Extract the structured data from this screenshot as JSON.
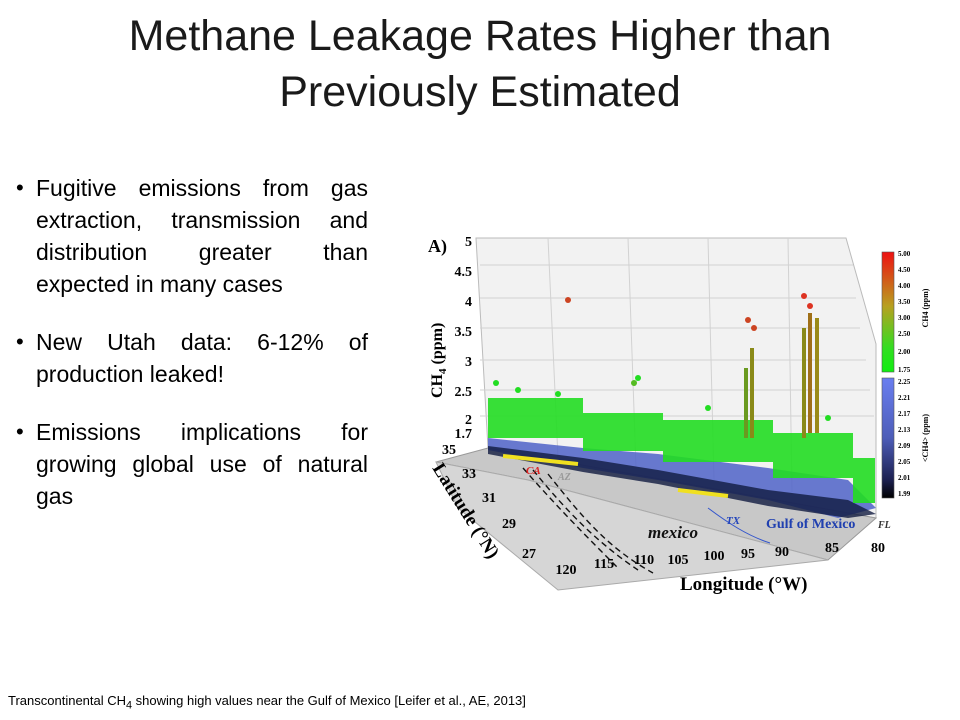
{
  "slide": {
    "title_line1": "Methane Leakage Rates Higher than",
    "title_line2": "Previously Estimated",
    "bullets": [
      "Fugitive emissions from gas extraction, transmission and distribution greater than expected in many cases",
      "New Utah data: 6-12% of production leaked!",
      "Emissions implications for growing global use of natural gas"
    ],
    "caption_pre": "Transcontinental CH",
    "caption_sub": "4",
    "caption_post": " showing high values near the Gulf of Mexico [Leifer et al., AE, 2013]"
  },
  "figure": {
    "panel_label": "A)",
    "z_label": "CH",
    "z_label_sub": "4",
    "z_label_post": " (ppm)",
    "z_ticks": [
      "5",
      "4.5",
      "4",
      "3.5",
      "3",
      "2.5",
      "2",
      "1.7"
    ],
    "lat_label": "Latitude (°N)",
    "lat_ticks": [
      "35",
      "33",
      "31",
      "29",
      "27"
    ],
    "lon_label": "Longitude (°W)",
    "lon_ticks": [
      "120",
      "115",
      "110",
      "105",
      "100",
      "95",
      "90",
      "85",
      "80"
    ],
    "map_labels": {
      "ca": "CA",
      "az": "AZ",
      "tx": "TX",
      "mexico": "mexico",
      "gulf": "Gulf of Mexico",
      "fl": "FL"
    },
    "colorbar_top": {
      "title": "CH4 (ppm)",
      "ticks": [
        "5.00",
        "4.50",
        "4.00",
        "3.50",
        "3.00",
        "2.50",
        "2.00",
        "1.75"
      ]
    },
    "colorbar_bottom": {
      "title": "<CH4> (ppm)",
      "ticks": [
        "2.25",
        "2.21",
        "2.17",
        "2.13",
        "2.09",
        "2.05",
        "2.01",
        "1.99"
      ]
    },
    "colors": {
      "green": "#22dd22",
      "red": "#dd2222",
      "blue": "#5a6fd6",
      "yellow": "#f0e020"
    }
  }
}
